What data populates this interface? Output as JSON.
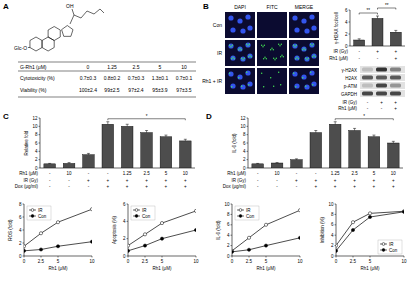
{
  "panel_labels": [
    "A",
    "B",
    "C",
    "D"
  ],
  "structure": {
    "labels": [
      "Glc-O",
      "OH"
    ]
  },
  "table": {
    "header": [
      "G-Rh1 (μM)",
      "0",
      "1.25",
      "2.5",
      "5",
      "10"
    ],
    "rows": [
      [
        "Cytotoxicity (%)",
        "0.7±0.3",
        "0.8±0.2",
        "0.7±0.3",
        "1.3±0.1",
        "0.7±0.1"
      ],
      [
        "Viability (%)",
        "100±2.4",
        "99±2.5",
        "97±2.4",
        "95±3.9",
        "97±3.5"
      ]
    ]
  },
  "images": {
    "columns": [
      "DAPI",
      "FITC",
      "MERGE"
    ],
    "rows": [
      "Con",
      "IR",
      "Rh1 + IR"
    ]
  },
  "blot": {
    "proteins": [
      "γ-H2AX",
      "H2AX",
      "p-ATM",
      "GAPDH"
    ],
    "lane_rows": [
      {
        "label": "IR (Gy)",
        "marks": [
          "-",
          "+",
          "+"
        ]
      },
      {
        "label": "Rh1 (μM)",
        "marks": [
          "-",
          "-",
          "+"
        ]
      }
    ]
  },
  "chart_data": [
    {
      "type": "bar",
      "y_label": "γ-H2AX foci/cell",
      "categories": [
        null,
        null,
        null
      ],
      "values": [
        1.0,
        4.6,
        2.3
      ],
      "errors": [
        0.2,
        0.4,
        0.3
      ],
      "color": "#4d4d4d",
      "ylim": [
        0,
        6
      ],
      "yticks": [
        0,
        2,
        4,
        6
      ],
      "condition_rows": [
        {
          "label": "IR (Gy)",
          "marks": [
            "-",
            "+",
            "+"
          ]
        },
        {
          "label": "Rh1 (μM)",
          "marks": [
            "-",
            "-",
            "+"
          ]
        }
      ],
      "annotations": [
        {
          "text": "**",
          "bars": [
            0,
            1
          ]
        },
        {
          "text": "**",
          "bars": [
            1,
            2
          ]
        }
      ]
    },
    {
      "type": "bar",
      "y_label": "Relative fold",
      "categories": [
        null,
        null,
        null,
        null,
        null,
        null,
        null,
        null
      ],
      "values": [
        1.0,
        1.1,
        3.2,
        10.5,
        10.0,
        8.5,
        7.5,
        6.5
      ],
      "errors": [
        0.1,
        0.2,
        0.3,
        0.6,
        0.5,
        0.5,
        0.4,
        0.4
      ],
      "color": "#4d4d4d",
      "ylim": [
        0,
        12
      ],
      "yticks": [
        0,
        2,
        4,
        6,
        8,
        10,
        12
      ],
      "condition_rows": [
        {
          "label": "Rh1 (μM)",
          "marks": [
            "-",
            "10",
            "-",
            "-",
            "1.25",
            "2.5",
            "5",
            "10"
          ]
        },
        {
          "label": "IR (Gy)",
          "marks": [
            "-",
            "-",
            "+",
            "+",
            "+",
            "+",
            "+",
            "+"
          ]
        },
        {
          "label": "Dox (μg/ml)",
          "marks": [
            "-",
            "-",
            "-",
            "+",
            "+",
            "+",
            "+",
            "+"
          ]
        }
      ],
      "annotations": [
        {
          "text": "*",
          "bars": [
            3,
            7
          ]
        }
      ]
    },
    {
      "type": "line",
      "x_label": "Rh1 (μM)",
      "y_label": "ROS (fold)",
      "x": [
        0,
        2.5,
        5,
        10
      ],
      "xlim": [
        0,
        10
      ],
      "xticks": [
        0,
        2.5,
        5,
        10
      ],
      "ylim": [
        0,
        8
      ],
      "yticks": [
        0,
        2,
        4,
        6,
        8
      ],
      "legend": "upper left",
      "series": [
        {
          "name": "IR",
          "color": "#000000",
          "marker": "circle-open",
          "values": [
            1.5,
            3.5,
            5.2,
            7.2
          ]
        },
        {
          "name": "Con",
          "color": "#000000",
          "marker": "circle",
          "values": [
            0.8,
            1.0,
            1.5,
            2.2
          ]
        }
      ]
    },
    {
      "type": "line",
      "x_label": "Rh1 (μM)",
      "y_label": "Apoptosis (%)",
      "x": [
        0,
        2.5,
        5,
        10
      ],
      "xlim": [
        0,
        10
      ],
      "xticks": [
        0,
        2.5,
        5,
        10
      ],
      "ylim": [
        0,
        6
      ],
      "yticks": [
        0,
        2,
        4,
        6
      ],
      "legend": "upper left",
      "series": [
        {
          "name": "IR",
          "color": "#000000",
          "marker": "circle-open",
          "values": [
            1.2,
            2.5,
            3.8,
            5.2
          ]
        },
        {
          "name": "Con",
          "color": "#000000",
          "marker": "circle",
          "values": [
            0.6,
            1.2,
            2.0,
            3.0
          ]
        }
      ]
    },
    {
      "type": "bar",
      "y_label": "IL-6 (fold)",
      "categories": [
        null,
        null,
        null,
        null,
        null,
        null,
        null,
        null
      ],
      "values": [
        1.0,
        1.2,
        2.0,
        8.5,
        10.5,
        9.0,
        7.5,
        6.0
      ],
      "errors": [
        0.1,
        0.1,
        0.2,
        0.5,
        0.6,
        0.5,
        0.4,
        0.4
      ],
      "color": "#4d4d4d",
      "ylim": [
        0,
        12
      ],
      "yticks": [
        0,
        2,
        4,
        6,
        8,
        10,
        12
      ],
      "condition_rows": [
        {
          "label": "Rh1 (μM)",
          "marks": [
            "-",
            "10",
            "-",
            "-",
            "1.25",
            "2.5",
            "5",
            "10"
          ]
        },
        {
          "label": "IR (Gy)",
          "marks": [
            "-",
            "-",
            "+",
            "+",
            "+",
            "+",
            "+",
            "+"
          ]
        },
        {
          "label": "Dox (μg/ml)",
          "marks": [
            "-",
            "-",
            "-",
            "+",
            "+",
            "+",
            "+",
            "+"
          ]
        }
      ],
      "annotations": [
        {
          "text": "*",
          "bars": [
            4,
            7
          ]
        }
      ]
    },
    {
      "type": "line",
      "x_label": "Rh1 (μM)",
      "y_label": "IL-6 (fold)",
      "x": [
        0,
        2.5,
        5,
        10
      ],
      "xlim": [
        0,
        10
      ],
      "xticks": [
        0,
        2.5,
        5,
        10
      ],
      "ylim": [
        0,
        10
      ],
      "yticks": [
        0,
        2,
        4,
        6,
        8,
        10
      ],
      "legend": "upper left",
      "series": [
        {
          "name": "IR",
          "color": "#000000",
          "marker": "circle-open",
          "values": [
            1.0,
            3.5,
            6.0,
            8.8
          ]
        },
        {
          "name": "Con",
          "color": "#000000",
          "marker": "circle",
          "values": [
            0.8,
            1.2,
            2.0,
            3.5
          ]
        }
      ]
    },
    {
      "type": "line",
      "x_label": "Rh1 (μM)",
      "y_label": "Inhibition (%)",
      "x": [
        0,
        2.5,
        5,
        10
      ],
      "xlim": [
        0,
        10
      ],
      "xticks": [
        0,
        2.5,
        5,
        10
      ],
      "ylim": [
        0,
        10
      ],
      "yticks": [
        0,
        2,
        4,
        6,
        8,
        10
      ],
      "legend": "lower right",
      "series": [
        {
          "name": "IR",
          "color": "#000000",
          "marker": "circle-open",
          "values": [
            2.0,
            6.5,
            8.2,
            8.6
          ]
        },
        {
          "name": "Con",
          "color": "#000000",
          "marker": "circle",
          "values": [
            1.0,
            5.0,
            7.5,
            8.5
          ]
        }
      ]
    }
  ]
}
